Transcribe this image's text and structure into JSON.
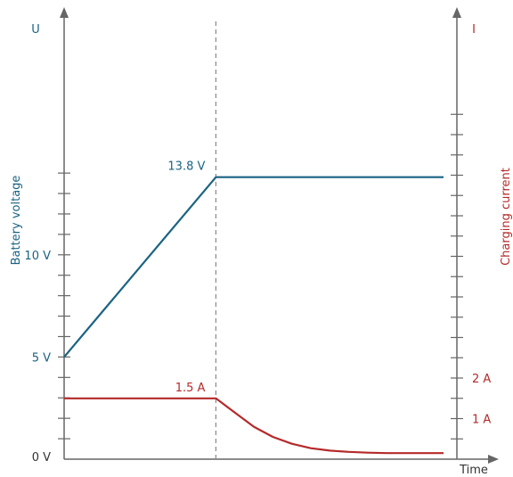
{
  "colors": {
    "voltage": "#1a6383",
    "current": "#b52a2a",
    "axis": "#666666",
    "text": "#333333"
  },
  "chart_data": {
    "type": "line",
    "xlabel": "Time",
    "left_axis": {
      "letter": "U",
      "title": "Battery voltage",
      "range": [
        0,
        15
      ],
      "tick_step": 1,
      "tick_labels": [
        {
          "value": 0,
          "text": "0 V"
        },
        {
          "value": 5,
          "text": "5 V"
        },
        {
          "value": 10,
          "text": "10 V"
        }
      ]
    },
    "right_axis": {
      "letter": "I",
      "title": "Charging current",
      "range": [
        0,
        8.8
      ],
      "tick_step": 0.5,
      "tick_labels": [
        {
          "value": 1,
          "text": "1 A"
        },
        {
          "value": 2,
          "text": "2 A"
        }
      ]
    },
    "x_range": [
      0,
      10
    ],
    "transition_x": 4,
    "series": [
      {
        "axis": "left",
        "points": [
          [
            0,
            5.0
          ],
          [
            4,
            13.8
          ],
          [
            10,
            13.8
          ]
        ]
      },
      {
        "axis": "right",
        "points": [
          [
            0,
            1.5
          ],
          [
            4,
            1.5
          ],
          [
            4.5,
            1.15
          ],
          [
            5,
            0.8
          ],
          [
            5.5,
            0.55
          ],
          [
            6,
            0.38
          ],
          [
            6.5,
            0.27
          ],
          [
            7,
            0.21
          ],
          [
            7.5,
            0.18
          ],
          [
            8,
            0.16
          ],
          [
            8.5,
            0.15
          ],
          [
            9,
            0.15
          ],
          [
            10,
            0.15
          ]
        ]
      }
    ],
    "annotations": [
      {
        "text": "13.8 V",
        "series": 0,
        "x": 4,
        "y": 13.8
      },
      {
        "text": "1.5 A",
        "series": 1,
        "x": 4,
        "y": 1.5
      }
    ]
  }
}
